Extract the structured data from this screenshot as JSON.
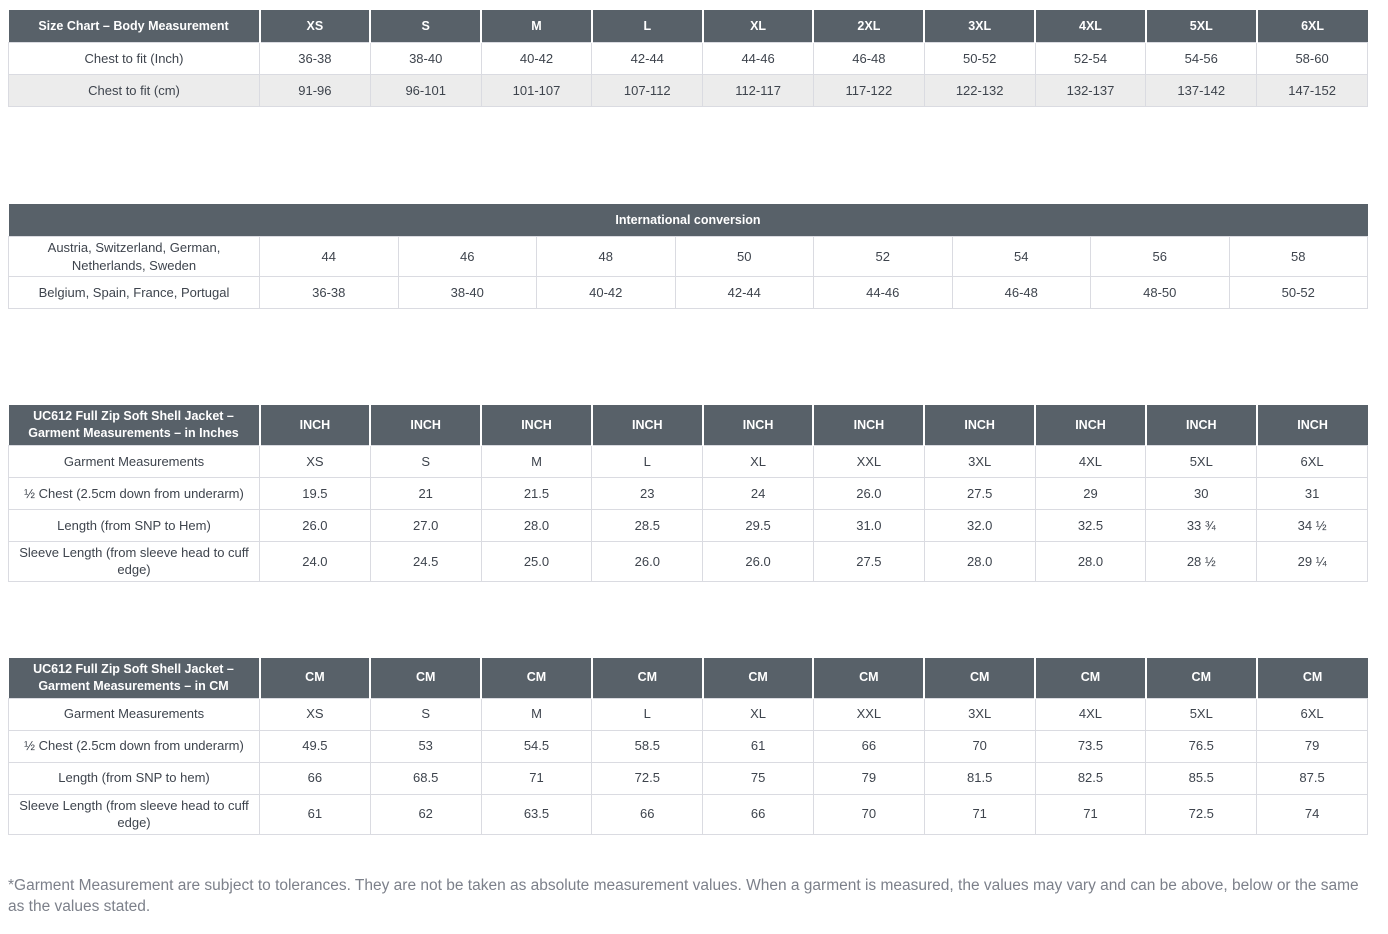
{
  "colors": {
    "header_bg": "#586169",
    "shaded_row_bg": "#ececec",
    "border": "#dadbe1",
    "cell_text": "#3e444d",
    "footnote_text": "#7c808a"
  },
  "tables": {
    "body_measurement": {
      "title": "Size Chart – Body Measurement",
      "columns": [
        "XS",
        "S",
        "M",
        "L",
        "XL",
        "2XL",
        "3XL",
        "4XL",
        "5XL",
        "6XL"
      ],
      "rows": [
        {
          "label": "Chest to fit (Inch)",
          "shaded": false,
          "values": [
            "36-38",
            "38-40",
            "40-42",
            "42-44",
            "44-46",
            "46-48",
            "50-52",
            "52-54",
            "54-56",
            "58-60"
          ]
        },
        {
          "label": "Chest to fit (cm)",
          "shaded": true,
          "values": [
            "91-96",
            "96-101",
            "101-107",
            "107-112",
            "112-117",
            "117-122",
            "122-132",
            "132-137",
            "137-142",
            "147-152"
          ]
        }
      ]
    },
    "international": {
      "title": "International conversion",
      "rows": [
        {
          "label": "Austria, Switzerland, German, Netherlands, Sweden",
          "values": [
            "44",
            "46",
            "48",
            "50",
            "52",
            "54",
            "56",
            "58"
          ]
        },
        {
          "label": "Belgium, Spain, France, Portugal",
          "values": [
            "36-38",
            "38-40",
            "40-42",
            "42-44",
            "44-46",
            "46-48",
            "48-50",
            "50-52"
          ]
        }
      ]
    },
    "garment_inches": {
      "title": "UC612 Full Zip Soft Shell Jacket – Garment Measurements – in Inches",
      "columns": [
        "INCH",
        "INCH",
        "INCH",
        "INCH",
        "INCH",
        "INCH",
        "INCH",
        "INCH",
        "INCH",
        "INCH"
      ],
      "rows": [
        {
          "label": "Garment Measurements",
          "values": [
            "XS",
            "S",
            "M",
            "L",
            "XL",
            "XXL",
            "3XL",
            "4XL",
            "5XL",
            "6XL"
          ]
        },
        {
          "label": "½ Chest (2.5cm down from underarm)",
          "values": [
            "19.5",
            "21",
            "21.5",
            "23",
            "24",
            "26.0",
            "27.5",
            "29",
            "30",
            "31"
          ]
        },
        {
          "label": "Length (from SNP to Hem)",
          "values": [
            "26.0",
            "27.0",
            "28.0",
            "28.5",
            "29.5",
            "31.0",
            "32.0",
            "32.5",
            "33 ¾",
            "34 ½"
          ]
        },
        {
          "label": "Sleeve Length (from sleeve head to cuff edge)",
          "values": [
            "24.0",
            "24.5",
            "25.0",
            "26.0",
            "26.0",
            "27.5",
            "28.0",
            "28.0",
            "28 ½",
            "29 ¼"
          ]
        }
      ]
    },
    "garment_cm": {
      "title": "UC612 Full Zip Soft Shell Jacket – Garment Measurements – in CM",
      "columns": [
        "CM",
        "CM",
        "CM",
        "CM",
        "CM",
        "CM",
        "CM",
        "CM",
        "CM",
        "CM"
      ],
      "rows": [
        {
          "label": "Garment Measurements",
          "values": [
            "XS",
            "S",
            "M",
            "L",
            "XL",
            "XXL",
            "3XL",
            "4XL",
            "5XL",
            "6XL"
          ]
        },
        {
          "label": "½ Chest (2.5cm down from underarm)",
          "values": [
            "49.5",
            "53",
            "54.5",
            "58.5",
            "61",
            "66",
            "70",
            "73.5",
            "76.5",
            "79"
          ]
        },
        {
          "label": "Length (from SNP to hem)",
          "values": [
            "66",
            "68.5",
            "71",
            "72.5",
            "75",
            "79",
            "81.5",
            "82.5",
            "85.5",
            "87.5"
          ]
        },
        {
          "label": "Sleeve Length (from sleeve head to cuff edge)",
          "values": [
            "61",
            "62",
            "63.5",
            "66",
            "66",
            "70",
            "71",
            "71",
            "72.5",
            "74"
          ]
        }
      ]
    }
  },
  "footnote": "*Garment Measurement are subject to tolerances. They are not be taken as absolute measurement values. When a garment is measured, the values may vary and can be above, below or the same as the values stated."
}
